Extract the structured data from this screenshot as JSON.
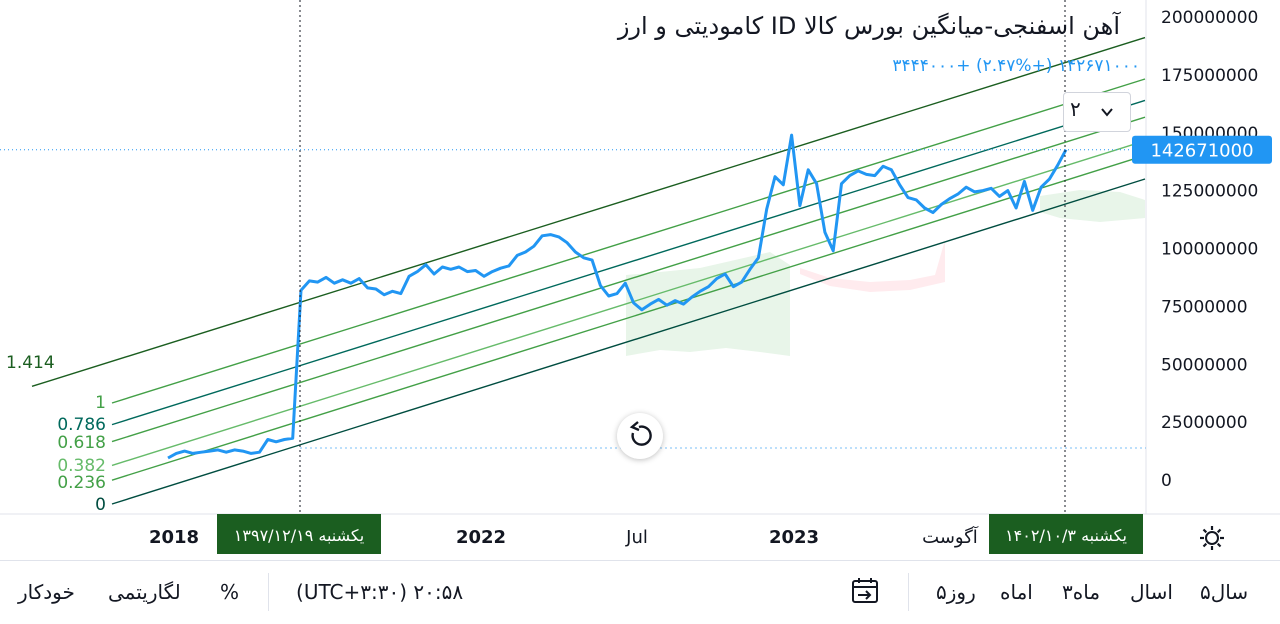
{
  "chart_data": {
    "type": "line",
    "title": "آهن اسفنجی-میانگین بورس کالا ID کامودیتی و ارز",
    "quote": "۱۴۲۶۷۱۰۰۰ (+۲.۴۷%) +۳۴۴۴۰۰۰",
    "last_price_label": "142671000",
    "y_ticks": [
      {
        "v": 200000000,
        "label": "200000000"
      },
      {
        "v": 175000000,
        "label": "175000000"
      },
      {
        "v": 150000000,
        "label": "150000000"
      },
      {
        "v": 125000000,
        "label": "125000000"
      },
      {
        "v": 100000000,
        "label": "100000000"
      },
      {
        "v": 75000000,
        "label": "75000000"
      },
      {
        "v": 50000000,
        "label": "50000000"
      },
      {
        "v": 25000000,
        "label": "25000000"
      },
      {
        "v": 0,
        "label": "0"
      }
    ],
    "ylim": [
      -4000000,
      204000000
    ],
    "x_ticks": [
      {
        "label": "2018",
        "bold": true
      },
      {
        "label": "2022",
        "bold": true
      },
      {
        "label": "Jul",
        "bold": false
      },
      {
        "label": "2023",
        "bold": true
      },
      {
        "label": "آگوست",
        "bold": false
      }
    ],
    "crosshair_left_label": "یکشنبه ۱۳۹۷/۱۲/۱۹",
    "crosshair_right_label": "یکشنبه ۱۴۰۲/۱۰/۳",
    "fib_levels": [
      {
        "label": "1.414",
        "color": "#1b5e20"
      },
      {
        "label": "1",
        "color": "#43a047"
      },
      {
        "label": "0.786",
        "color": "#00695c"
      },
      {
        "label": "0.618",
        "color": "#43a047"
      },
      {
        "label": "0.382",
        "color": "#66bb6a"
      },
      {
        "label": "0.236",
        "color": "#43a047"
      },
      {
        "label": "0",
        "color": "#004d40"
      }
    ],
    "series": [
      {
        "values": [
          9500000,
          11500000,
          12500000,
          11500000,
          12000000,
          12500000,
          13000000,
          12000000,
          13000000,
          12500000,
          11500000,
          12000000,
          17500000,
          16500000,
          17500000,
          18000000,
          82000000,
          86000000,
          85500000,
          87500000,
          85000000,
          86500000,
          85000000,
          87000000,
          83000000,
          82500000,
          80000000,
          81500000,
          80500000,
          88000000,
          90000000,
          93000000,
          89000000,
          92000000,
          91000000,
          92000000,
          90000000,
          90500000,
          88000000,
          90000000,
          91500000,
          92500000,
          97000000,
          98500000,
          101000000,
          105500000,
          106000000,
          105000000,
          102500000,
          98500000,
          96000000,
          95000000,
          84000000,
          79500000,
          80500000,
          85000000,
          76500000,
          73500000,
          76000000,
          78000000,
          75500000,
          77500000,
          76000000,
          79000000,
          81500000,
          83500000,
          87000000,
          89000000,
          83500000,
          85500000,
          91000000,
          96000000,
          117000000,
          131000000,
          127500000,
          149000000,
          118500000,
          134000000,
          128000000,
          107000000,
          99000000,
          128000000,
          131500000,
          133500000,
          132000000,
          131500000,
          135500000,
          134000000,
          127500000,
          122000000,
          121000000,
          117500000,
          115500000,
          119000000,
          121500000,
          123500000,
          126500000,
          124500000,
          125000000,
          126000000,
          122500000,
          125000000,
          117500000,
          129000000,
          116500000,
          126500000,
          130000000,
          136000000,
          142671000
        ],
        "color": "#2196f3"
      }
    ],
    "interval": "۲"
  },
  "bottom_bar": {
    "ranges": [
      "۵سال",
      "اسال",
      "۳ماه",
      "اماه",
      "۵روز"
    ],
    "time": "۲۰:۵۸ (UTC+۳:۳۰)",
    "percent": "%",
    "log": "لگاریتمی",
    "auto": "خودکار"
  },
  "colors": {
    "line": "#2196f3",
    "cloud_green": "#e8f5e9",
    "cloud_red": "#ffebee",
    "label_bg": "#1b5e20",
    "price_bg": "#2196f3"
  }
}
